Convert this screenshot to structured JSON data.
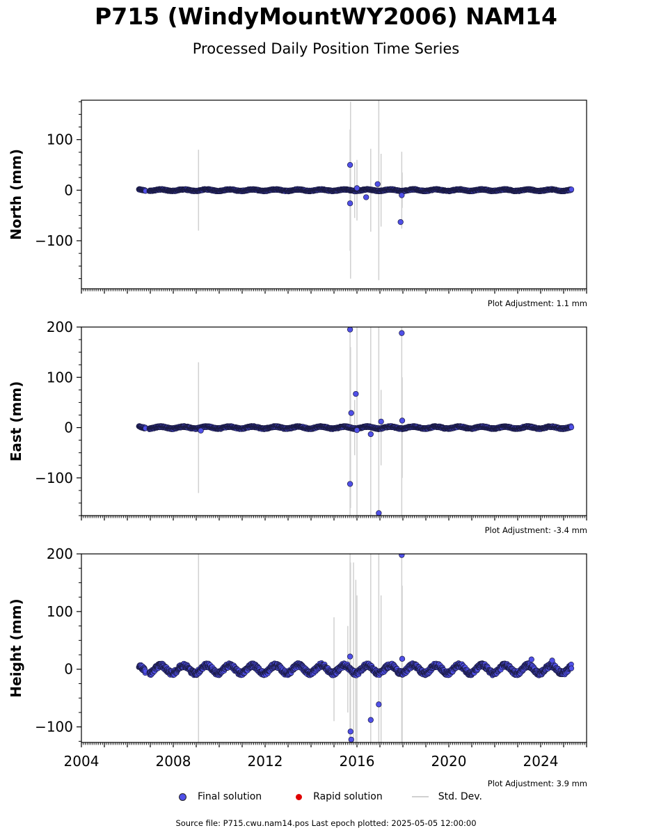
{
  "title": "P715 (WindyMountWY2006) NAM14",
  "subtitle": "Processed Daily Position Time Series",
  "source_line": "Source file: P715.cwu.nam14.pos  Last epoch plotted: 2025-05-05 12:00:00",
  "legend": {
    "final": "Final solution",
    "rapid": "Rapid solution",
    "stddev": "Std. Dev."
  },
  "colors": {
    "final": "#5050e8",
    "rapid": "#e00000",
    "stddev": "#d0d0d0"
  },
  "chart_data": [
    {
      "type": "scatter",
      "ylabel": "North (mm)",
      "adjustment": "Plot Adjustment: 1.1 mm",
      "xlim": [
        2004,
        2026
      ],
      "ylim": [
        -195,
        178
      ],
      "yticks": [
        -100,
        0,
        100
      ],
      "ytick_labels": [
        "−100",
        "0",
        "100"
      ],
      "x_start": 2006.5,
      "x_end": 2025.34,
      "amplitude": 1.5,
      "noise": 1.2,
      "outliers": [
        {
          "x": 2015.7,
          "y": 50
        },
        {
          "x": 2015.7,
          "y": -26
        },
        {
          "x": 2016.0,
          "y": 4
        },
        {
          "x": 2016.4,
          "y": -14
        },
        {
          "x": 2016.9,
          "y": 12
        },
        {
          "x": 2017.9,
          "y": -63
        },
        {
          "x": 2017.95,
          "y": -10
        }
      ],
      "stddev_bars": [
        {
          "x": 2009.1,
          "half": 80
        },
        {
          "x": 2015.7,
          "half": 120
        },
        {
          "x": 2015.72,
          "half": 175
        },
        {
          "x": 2015.9,
          "half": 55
        },
        {
          "x": 2016.0,
          "half": 60
        },
        {
          "x": 2016.6,
          "half": 82
        },
        {
          "x": 2016.95,
          "half": 178
        },
        {
          "x": 2017.05,
          "half": 72
        },
        {
          "x": 2017.95,
          "half": 76
        },
        {
          "x": 2017.97,
          "half": 35
        }
      ]
    },
    {
      "type": "scatter",
      "ylabel": "East (mm)",
      "adjustment": "Plot Adjustment: -3.4 mm",
      "xlim": [
        2004,
        2026
      ],
      "ylim": [
        -175,
        200
      ],
      "yticks": [
        -100,
        0,
        100,
        200
      ],
      "ytick_labels": [
        "−100",
        "0",
        "100",
        "200"
      ],
      "x_start": 2006.5,
      "x_end": 2025.34,
      "amplitude": 2.0,
      "noise": 1.5,
      "outliers": [
        {
          "x": 2009.2,
          "y": -6
        },
        {
          "x": 2015.7,
          "y": 195
        },
        {
          "x": 2015.7,
          "y": -112
        },
        {
          "x": 2015.75,
          "y": 29
        },
        {
          "x": 2015.95,
          "y": 67
        },
        {
          "x": 2016.0,
          "y": -5
        },
        {
          "x": 2016.6,
          "y": -13
        },
        {
          "x": 2016.95,
          "y": -170
        },
        {
          "x": 2017.05,
          "y": 12
        },
        {
          "x": 2017.95,
          "y": 188
        },
        {
          "x": 2017.97,
          "y": 14
        }
      ],
      "stddev_bars": [
        {
          "x": 2009.1,
          "half": 130
        },
        {
          "x": 2015.7,
          "half": 200
        },
        {
          "x": 2015.72,
          "half": 160
        },
        {
          "x": 2015.9,
          "half": 55
        },
        {
          "x": 2016.0,
          "half": 200
        },
        {
          "x": 2016.6,
          "half": 200
        },
        {
          "x": 2016.95,
          "half": 200
        },
        {
          "x": 2017.05,
          "half": 75
        },
        {
          "x": 2017.95,
          "half": 200
        },
        {
          "x": 2017.97,
          "half": 100
        }
      ]
    },
    {
      "type": "scatter",
      "ylabel": "Height (mm)",
      "adjustment": "Plot Adjustment: 3.9 mm",
      "xlim": [
        2004,
        2026
      ],
      "ylim": [
        -127,
        200
      ],
      "yticks": [
        -100,
        0,
        100,
        200
      ],
      "ytick_labels": [
        "−100",
        "0",
        "100",
        "200"
      ],
      "xticks": [
        2004,
        2008,
        2012,
        2016,
        2020,
        2024
      ],
      "x_start": 2006.5,
      "x_end": 2025.34,
      "amplitude": 7,
      "noise": 4,
      "outliers": [
        {
          "x": 2015.7,
          "y": 22
        },
        {
          "x": 2015.72,
          "y": -108
        },
        {
          "x": 2015.75,
          "y": -122
        },
        {
          "x": 2016.6,
          "y": -88
        },
        {
          "x": 2016.95,
          "y": -61
        },
        {
          "x": 2017.95,
          "y": 198
        },
        {
          "x": 2017.97,
          "y": 18
        },
        {
          "x": 2023.6,
          "y": 17
        },
        {
          "x": 2024.5,
          "y": 15
        }
      ],
      "stddev_bars": [
        {
          "x": 2009.1,
          "half": 200
        },
        {
          "x": 2015.0,
          "half": 90
        },
        {
          "x": 2015.6,
          "half": 75
        },
        {
          "x": 2015.7,
          "half": 200
        },
        {
          "x": 2015.72,
          "half": 185
        },
        {
          "x": 2015.85,
          "half": 185
        },
        {
          "x": 2015.95,
          "half": 155
        },
        {
          "x": 2016.0,
          "half": 128
        },
        {
          "x": 2016.6,
          "half": 200
        },
        {
          "x": 2016.95,
          "half": 200
        },
        {
          "x": 2017.05,
          "half": 128
        },
        {
          "x": 2017.95,
          "half": 200
        },
        {
          "x": 2017.97,
          "half": 145
        }
      ]
    }
  ]
}
